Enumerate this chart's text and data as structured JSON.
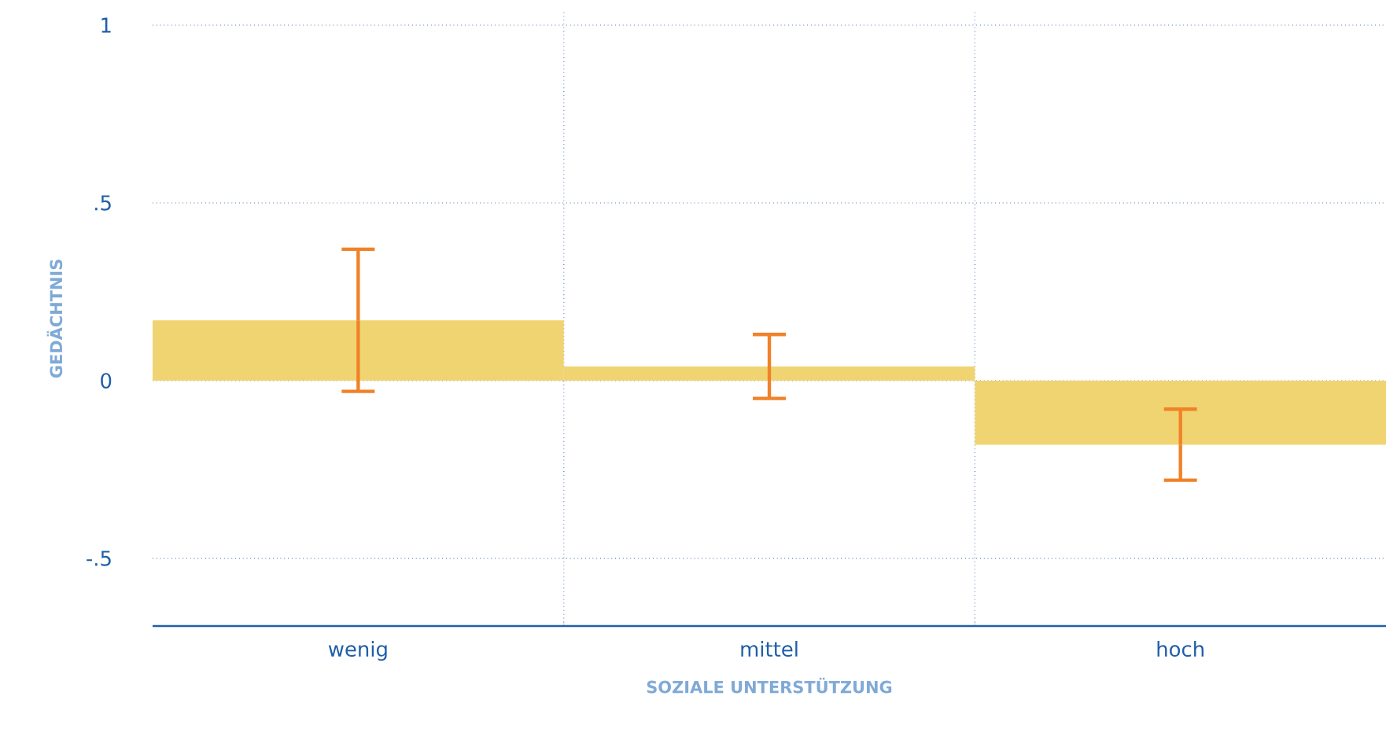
{
  "chart_data": {
    "type": "bar",
    "xlabel": "SOZIALE UNTERSTÜTZUNG",
    "ylabel": "GEDÄCHTNIS",
    "categories": [
      "wenig",
      "mittel",
      "hoch"
    ],
    "values": [
      0.17,
      0.04,
      -0.18
    ],
    "errors": [
      0.2,
      0.09,
      0.1
    ],
    "color": "#f0d472",
    "ylim": [
      -0.69,
      1.04
    ],
    "yticks": [
      {
        "value": -0.5,
        "label": "-.5"
      },
      0,
      {
        "value": 0.5,
        "label": ".5"
      },
      1
    ],
    "grid": true
  }
}
